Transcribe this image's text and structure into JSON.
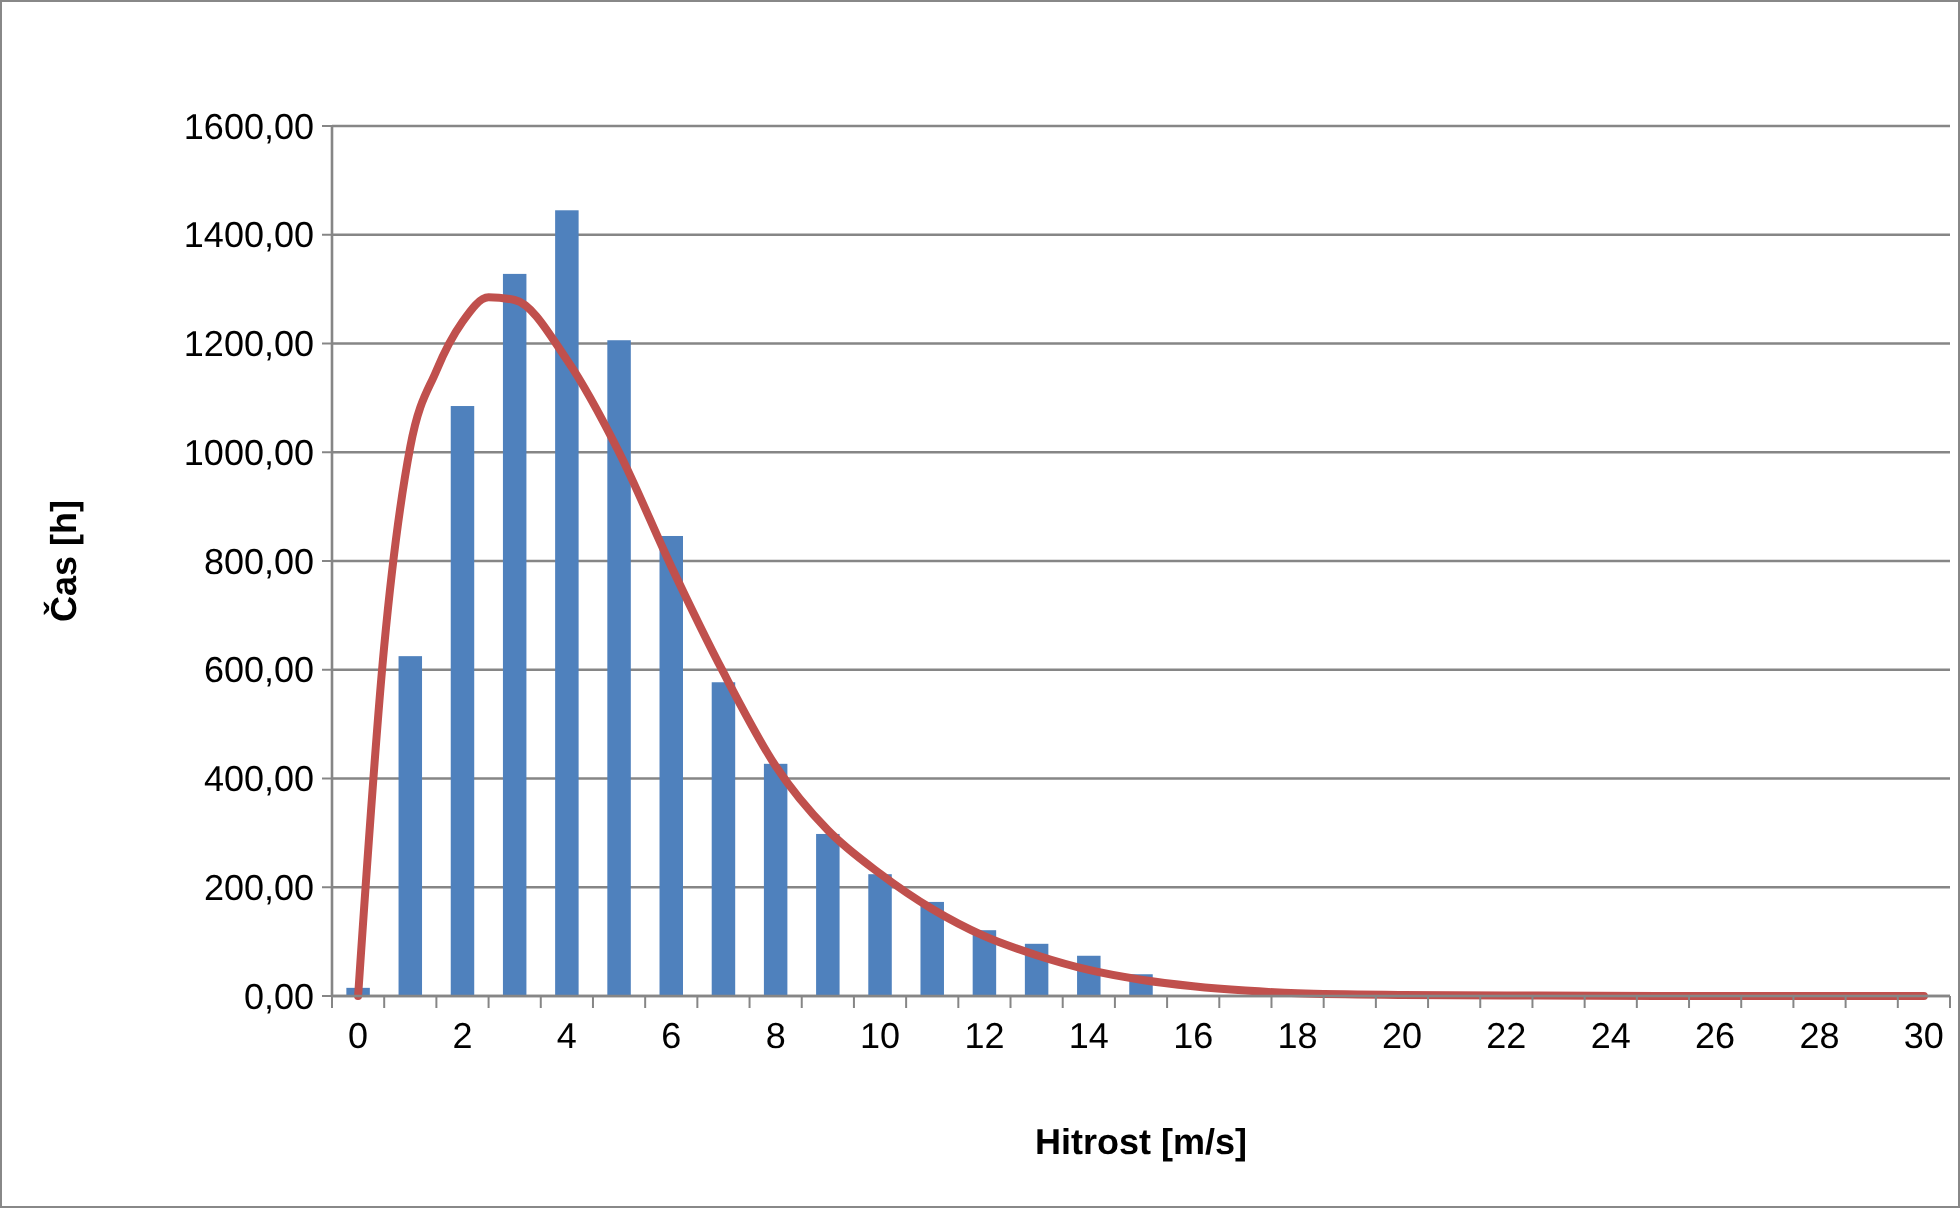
{
  "chart_data": {
    "type": "bar",
    "xlabel": "Hitrost [m/s]",
    "ylabel": "Čas [h]",
    "xlim": [
      -0.5,
      30.5
    ],
    "xticks": [
      {
        "value": 0,
        "label": "0"
      },
      {
        "value": 2,
        "label": "2"
      },
      {
        "value": 4,
        "label": "4"
      },
      {
        "value": 6,
        "label": "6"
      },
      {
        "value": 8,
        "label": "8"
      },
      {
        "value": 10,
        "label": "10"
      },
      {
        "value": 12,
        "label": "12"
      },
      {
        "value": 14,
        "label": "14"
      },
      {
        "value": 16,
        "label": "16"
      },
      {
        "value": 18,
        "label": "18"
      },
      {
        "value": 20,
        "label": "20"
      },
      {
        "value": 22,
        "label": "22"
      },
      {
        "value": 24,
        "label": "24"
      },
      {
        "value": 26,
        "label": "26"
      },
      {
        "value": 28,
        "label": "28"
      },
      {
        "value": 30,
        "label": "30"
      }
    ],
    "ylim": [
      0,
      1600
    ],
    "yticks": [
      {
        "value": 0,
        "label": "0,00"
      },
      {
        "value": 200,
        "label": "200,00"
      },
      {
        "value": 400,
        "label": "400,00"
      },
      {
        "value": 600,
        "label": "600,00"
      },
      {
        "value": 800,
        "label": "800,00"
      },
      {
        "value": 1000,
        "label": "1000,00"
      },
      {
        "value": 1200,
        "label": "1200,00"
      },
      {
        "value": 1400,
        "label": "1400,00"
      },
      {
        "value": 1600,
        "label": "1600,00"
      }
    ],
    "grid": "y",
    "series": [
      {
        "color": "#4f81bd",
        "x": [
          0,
          1,
          2,
          3,
          4,
          5,
          6,
          7,
          8,
          9,
          10,
          11,
          12,
          13,
          14,
          15,
          16,
          17,
          18,
          19,
          20,
          21,
          22,
          23,
          24,
          25,
          26,
          27,
          28,
          29,
          30
        ],
        "values": [
          15,
          625,
          1085,
          1328,
          1445,
          1206,
          846,
          577,
          427,
          298,
          224,
          173,
          121,
          96,
          74,
          40,
          0,
          0,
          0,
          0,
          0,
          0,
          0,
          0,
          0,
          0,
          0,
          0,
          0,
          0,
          0
        ]
      },
      {
        "type": "line",
        "color": "#c0504d",
        "marker": "none",
        "line_style": "solid",
        "x": [
          0,
          0.5,
          1,
          1.5,
          2,
          2.5,
          3,
          4,
          5,
          6,
          7,
          8,
          9,
          10,
          11,
          12,
          13,
          14,
          15,
          16,
          17,
          18,
          20,
          22,
          25,
          30
        ],
        "values": [
          0,
          643,
          1010,
          1150,
          1240,
          1285,
          1280,
          1170,
          1000,
          790,
          595,
          423,
          305,
          225,
          160,
          110,
          75,
          48,
          30,
          18,
          10,
          5,
          2,
          1,
          0,
          0
        ]
      }
    ]
  }
}
